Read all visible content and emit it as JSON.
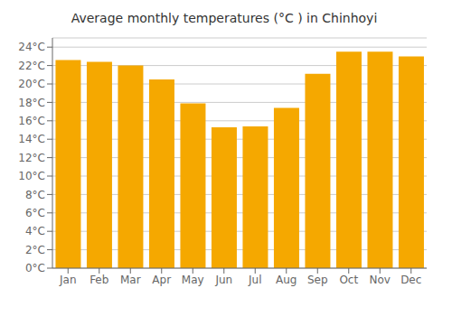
{
  "chart_data": {
    "type": "bar",
    "title": "Average monthly temperatures (°C ) in Chinhoyi",
    "categories": [
      "Jan",
      "Feb",
      "Mar",
      "Apr",
      "May",
      "Jun",
      "Jul",
      "Aug",
      "Sep",
      "Oct",
      "Nov",
      "Dec"
    ],
    "values": [
      22.6,
      22.4,
      22.0,
      20.5,
      17.9,
      15.3,
      15.4,
      17.4,
      21.1,
      23.5,
      23.5,
      23.0
    ],
    "color": "#F5A800",
    "ylim": [
      0,
      25
    ],
    "yticks": [
      {
        "value": 0,
        "label": "0°C"
      },
      {
        "value": 2,
        "label": "2°C"
      },
      {
        "value": 4,
        "label": "4°C"
      },
      {
        "value": 6,
        "label": "6°C"
      },
      {
        "value": 8,
        "label": "8°C"
      },
      {
        "value": 10,
        "label": "10°C"
      },
      {
        "value": 12,
        "label": "12°C"
      },
      {
        "value": 14,
        "label": "14°C"
      },
      {
        "value": 16,
        "label": "16°C"
      },
      {
        "value": 18,
        "label": "18°C"
      },
      {
        "value": 20,
        "label": "20°C"
      },
      {
        "value": 22,
        "label": "22°C"
      },
      {
        "value": 24,
        "label": "24°C"
      }
    ],
    "grid": true
  }
}
